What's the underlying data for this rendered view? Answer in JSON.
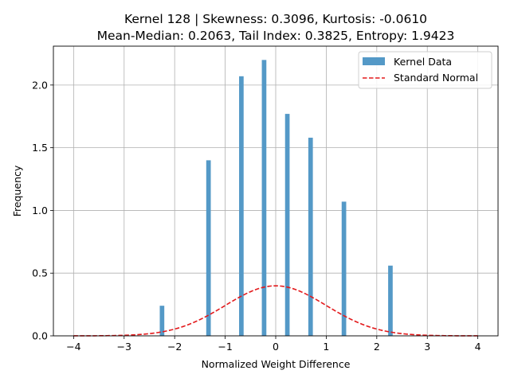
{
  "chart_data": {
    "type": "bar",
    "title_line1": "Kernel 128 | Skewness: 0.3096, Kurtosis: -0.0610",
    "title_line2": "Mean-Median: 0.2063, Tail Index: 0.3825, Entropy: 1.9423",
    "xlabel": "Normalized Weight Difference",
    "ylabel": "Frequency",
    "xlim": [
      -4.4,
      4.4
    ],
    "ylim": [
      0,
      2.31
    ],
    "xticks": [
      -4,
      -3,
      -2,
      -1,
      0,
      1,
      2,
      3,
      4
    ],
    "xtick_labels": [
      "−4",
      "−3",
      "−2",
      "−1",
      "0",
      "1",
      "2",
      "3",
      "4"
    ],
    "yticks": [
      0,
      0.5,
      1.0,
      1.5,
      2.0
    ],
    "ytick_labels": [
      "0.0",
      "0.5",
      "1.0",
      "1.5",
      "2.0"
    ],
    "grid": true,
    "legend_position": "top-right",
    "series": [
      {
        "name": "Kernel Data",
        "kind": "histogram",
        "color": "#5499c7",
        "bar_width": 0.09,
        "x": [
          -2.25,
          -1.33,
          -0.68,
          -0.23,
          0.23,
          0.69,
          1.35,
          2.27
        ],
        "values": [
          0.24,
          1.4,
          2.07,
          2.2,
          1.77,
          1.58,
          1.07,
          0.56
        ]
      },
      {
        "name": "Standard Normal",
        "kind": "line",
        "style": "dashed",
        "color": "#e31a1c",
        "function": "normal_pdf",
        "mean": 0,
        "std": 1,
        "range": [
          -4,
          4
        ]
      }
    ]
  }
}
